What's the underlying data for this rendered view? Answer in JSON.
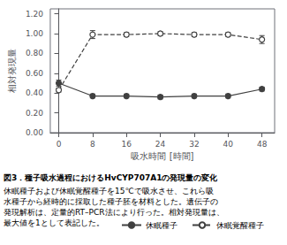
{
  "chart_data": {
    "type": "line",
    "title": "図3．種子吸水過程におけるHvCYP707A1の発現量の変化",
    "annotations": [
      "休眠種子および休眠覚醒種子を15℃で吸水させ、これら吸",
      "水種子から経時的に採取した種子胚を材料とした。遺伝子の",
      "発現解析は、定量的RT–PCR法により行った。相対発現量は、",
      "最大値を1として表記した。"
    ],
    "xlabel": "吸水時間 [時間]",
    "ylabel": "相対発現量",
    "x": [
      0,
      8,
      16,
      24,
      32,
      40,
      48
    ],
    "series": [
      {
        "name": "休眠種子",
        "color": "#404040",
        "marker": "circle",
        "line_style": "solid",
        "values": [
          0.5,
          0.37,
          0.37,
          0.36,
          0.37,
          0.37,
          0.44
        ],
        "errors": [
          0.03,
          0.02,
          0.02,
          0.02,
          0.02,
          0.02,
          0.02
        ]
      },
      {
        "name": "休眠覚醒種子",
        "color": "#404040",
        "marker": "open_circle",
        "line_style": "dashed",
        "values": [
          0.43,
          0.99,
          0.99,
          1.0,
          0.99,
          0.99,
          0.94
        ],
        "errors": [
          0.02,
          0.04,
          0.02,
          0.02,
          0.02,
          0.02,
          0.04
        ]
      }
    ],
    "xlim": [
      -2,
      51
    ],
    "ylim": [
      0.0,
      1.25
    ],
    "xticks": [
      0,
      8,
      16,
      24,
      32,
      40,
      48
    ],
    "yticks": [
      {
        "value": 0.0,
        "label": "0.00"
      },
      {
        "value": 0.2,
        "label": "0.20"
      },
      {
        "value": 0.4,
        "label": "0.40"
      },
      {
        "value": 0.6,
        "label": "0.60"
      },
      {
        "value": 0.8,
        "label": "0.80"
      },
      {
        "value": 1.0,
        "label": "1.00"
      },
      {
        "value": 1.2,
        "label": "1.20"
      }
    ],
    "grid": false,
    "legend": "bottom"
  }
}
